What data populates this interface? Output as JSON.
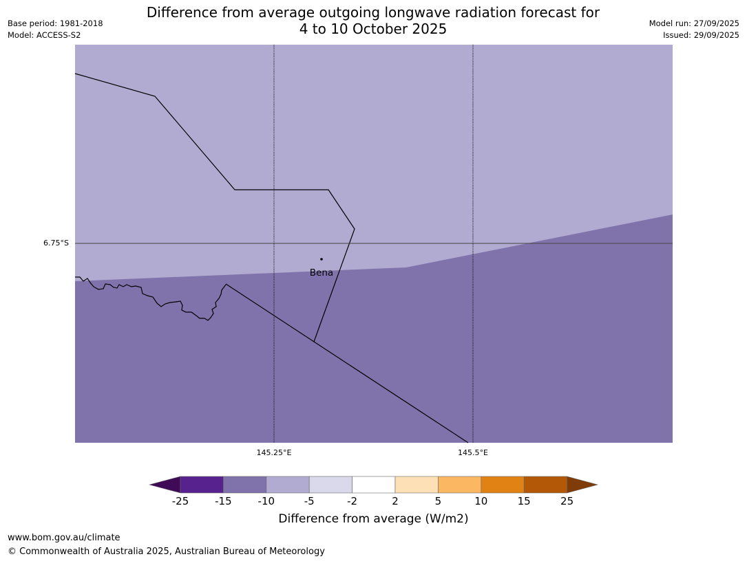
{
  "header": {
    "title_line1": "Difference from average outgoing longwave radiation forecast for",
    "title_line2": "4 to 10 October 2025",
    "base_period": "Base period: 1981-2018",
    "model": "Model: ACCESS-S2",
    "model_run": "Model run: 27/09/2025",
    "issued": "Issued: 29/09/2025"
  },
  "map": {
    "lat_label": "6.75°S",
    "lon_labels": [
      "145.25°E",
      "145.5°E"
    ],
    "place_name": "Bena"
  },
  "colorbar": {
    "ticks": [
      "-25",
      "-15",
      "-10",
      "-5",
      "-2",
      "2",
      "5",
      "10",
      "15",
      "25"
    ],
    "colors": [
      "#3f0b57",
      "#57228d",
      "#8073ac",
      "#b1aad1",
      "#d9d9eb",
      "#ffffff",
      "#fde0b6",
      "#fbb762",
      "#e08214",
      "#b35806",
      "#7f3b08"
    ],
    "label": "Difference from average (W/m2)"
  },
  "footer": {
    "url": "www.bom.gov.au/climate",
    "copyright": "© Commonwealth of Australia 2025, Australian Bureau of Meteorology"
  }
}
